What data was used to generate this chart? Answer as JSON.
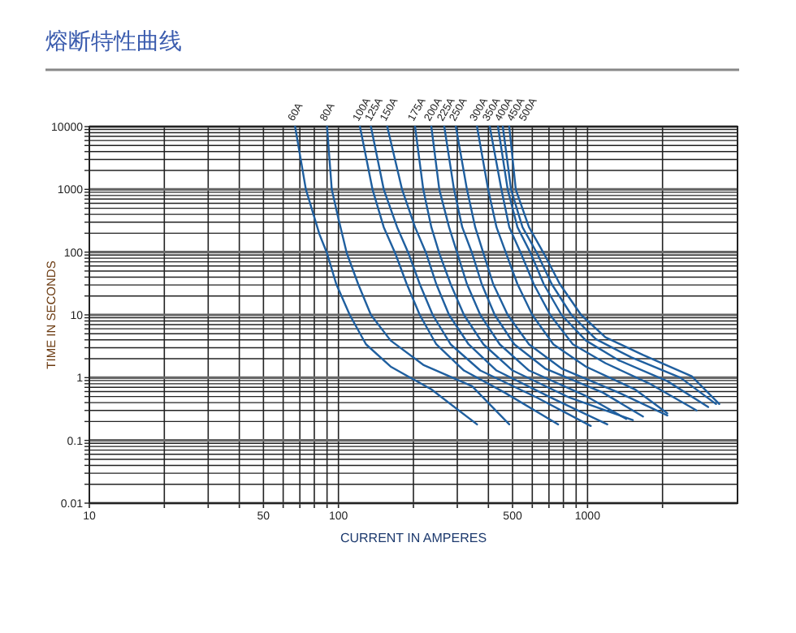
{
  "chart_data": {
    "type": "line",
    "title": "熔断特性曲线",
    "xlabel": "CURRENT IN AMPERES",
    "ylabel": "TIME IN SECONDS",
    "log": "xy",
    "grid": true,
    "legend": false,
    "marker": "none",
    "line_style": "solid",
    "xlim": [
      10,
      4000
    ],
    "ylim": [
      0.01,
      10000
    ],
    "xticks": [
      10,
      {
        "value": 20,
        "label": null
      },
      {
        "value": 30,
        "label": null
      },
      {
        "value": 40,
        "label": null
      },
      50,
      {
        "value": 60,
        "label": null
      },
      {
        "value": 70,
        "label": null
      },
      {
        "value": 80,
        "label": null
      },
      {
        "value": 90,
        "label": null
      },
      100,
      {
        "value": 200,
        "label": null
      },
      {
        "value": 300,
        "label": null
      },
      {
        "value": 400,
        "label": null
      },
      500,
      {
        "value": 600,
        "label": null
      },
      {
        "value": 700,
        "label": null
      },
      {
        "value": 800,
        "label": null
      },
      {
        "value": 900,
        "label": null
      },
      1000,
      {
        "value": 2000,
        "label": null
      }
    ],
    "yticks": [
      0.01,
      {
        "value": 0.02,
        "label": null
      },
      {
        "value": 0.03,
        "label": null
      },
      {
        "value": 0.04,
        "label": null
      },
      {
        "value": 0.05,
        "label": null
      },
      {
        "value": 0.06,
        "label": null
      },
      {
        "value": 0.07,
        "label": null
      },
      {
        "value": 0.08,
        "label": null
      },
      {
        "value": 0.09,
        "label": null
      },
      0.1,
      {
        "value": 0.2,
        "label": null
      },
      {
        "value": 0.3,
        "label": null
      },
      {
        "value": 0.4,
        "label": null
      },
      {
        "value": 0.5,
        "label": null
      },
      {
        "value": 0.6,
        "label": null
      },
      {
        "value": 0.7,
        "label": null
      },
      {
        "value": 0.8,
        "label": null
      },
      {
        "value": 0.9,
        "label": null
      },
      1,
      {
        "value": 2,
        "label": null
      },
      {
        "value": 3,
        "label": null
      },
      {
        "value": 4,
        "label": null
      },
      {
        "value": 5,
        "label": null
      },
      {
        "value": 6,
        "label": null
      },
      {
        "value": 7,
        "label": null
      },
      {
        "value": 8,
        "label": null
      },
      {
        "value": 9,
        "label": null
      },
      10,
      {
        "value": 20,
        "label": null
      },
      {
        "value": 30,
        "label": null
      },
      {
        "value": 40,
        "label": null
      },
      {
        "value": 50,
        "label": null
      },
      {
        "value": 60,
        "label": null
      },
      {
        "value": 70,
        "label": null
      },
      {
        "value": 80,
        "label": null
      },
      {
        "value": 90,
        "label": null
      },
      100,
      {
        "value": 200,
        "label": null
      },
      {
        "value": 300,
        "label": null
      },
      {
        "value": 400,
        "label": null
      },
      {
        "value": 500,
        "label": null
      },
      {
        "value": 600,
        "label": null
      },
      {
        "value": 700,
        "label": null
      },
      {
        "value": 800,
        "label": null
      },
      {
        "value": 900,
        "label": null
      },
      1000,
      {
        "value": 2000,
        "label": null
      },
      {
        "value": 3000,
        "label": null
      },
      {
        "value": 4000,
        "label": null
      },
      {
        "value": 5000,
        "label": null
      },
      {
        "value": 6000,
        "label": null
      },
      {
        "value": 7000,
        "label": null
      },
      {
        "value": 8000,
        "label": null
      },
      {
        "value": 9000,
        "label": null
      },
      10000
    ],
    "series": [
      {
        "name": "60A",
        "color": "#1f5f9f",
        "x": [
          67,
          74,
          84,
          90,
          98,
          111,
          129,
          162,
          236,
          360
        ],
        "values": [
          10000,
          1000,
          190,
          96,
          31,
          10,
          3.4,
          1.5,
          0.65,
          0.18
        ]
      },
      {
        "name": "80A",
        "color": "#1f5f9f",
        "x": [
          90,
          94,
          100,
          108,
          120,
          135,
          162,
          219,
          344,
          485
        ],
        "values": [
          10000,
          1000,
          340,
          96,
          31,
          10,
          3.9,
          1.6,
          0.73,
          0.18
        ]
      },
      {
        "name": "100A",
        "color": "#1f5f9f",
        "x": [
          122,
          137,
          152,
          169,
          188,
          212,
          247,
          319,
          464,
          762
        ],
        "values": [
          10000,
          1000,
          250,
          96,
          31,
          10,
          3.4,
          1.3,
          0.58,
          0.18
        ]
      },
      {
        "name": "125A",
        "color": "#1f5f9f",
        "x": [
          135,
          152,
          172,
          191,
          212,
          239,
          282,
          371,
          627,
          1030
        ],
        "values": [
          10000,
          1000,
          250,
          96,
          31,
          10,
          3.4,
          1.3,
          0.48,
          0.17
        ]
      },
      {
        "name": "150A",
        "color": "#1f5f9f",
        "x": [
          157,
          180,
          203,
          225,
          247,
          278,
          333,
          431,
          729,
          1200
        ],
        "values": [
          10000,
          1000,
          250,
          96,
          31,
          10,
          3.4,
          1.3,
          0.46,
          0.18
        ]
      },
      {
        "name": "175A",
        "color": "#1f5f9f",
        "x": [
          203,
          219,
          236,
          254,
          282,
          319,
          382,
          500,
          847,
          1520
        ],
        "values": [
          10000,
          1000,
          250,
          96,
          31,
          10,
          3.4,
          1.3,
          0.48,
          0.21
        ]
      },
      {
        "name": "200A",
        "color": "#1f5f9f",
        "x": [
          236,
          254,
          278,
          300,
          328,
          371,
          444,
          582,
          985,
          1430
        ],
        "values": [
          10000,
          1000,
          250,
          96,
          31,
          10,
          3.4,
          1.3,
          0.51,
          0.22
        ]
      },
      {
        "name": "225A",
        "color": "#1f5f9f",
        "x": [
          266,
          291,
          314,
          344,
          376,
          424,
          508,
          676,
          1150,
          1670
        ],
        "values": [
          10000,
          1000,
          250,
          96,
          31,
          10,
          3.4,
          1.4,
          0.58,
          0.24
        ]
      },
      {
        "name": "250A",
        "color": "#1f5f9f",
        "x": [
          296,
          328,
          354,
          382,
          418,
          478,
          582,
          786,
          1330,
          2090
        ],
        "values": [
          10000,
          1000,
          250,
          96,
          31,
          10,
          3.4,
          1.4,
          0.58,
          0.25
        ]
      },
      {
        "name": "300A",
        "color": "#1f5f9f",
        "x": [
          360,
          399,
          431,
          471,
          523,
          600,
          729,
          985,
          1550,
          2090
        ],
        "values": [
          10000,
          1000,
          250,
          96,
          31,
          10,
          3.4,
          1.5,
          0.65,
          0.27
        ]
      },
      {
        "name": "350A",
        "color": "#1f5f9f",
        "x": [
          405,
          451,
          485,
          540,
          608,
          708,
          873,
          1180,
          1800,
          2740
        ],
        "values": [
          10000,
          1000,
          250,
          96,
          31,
          10,
          3.4,
          1.7,
          0.78,
          0.3
        ]
      },
      {
        "name": "400A",
        "color": "#1f5f9f",
        "x": [
          437,
          478,
          523,
          591,
          667,
          786,
          985,
          1330,
          2090,
          3050
        ],
        "values": [
          10000,
          1000,
          250,
          96,
          31,
          10,
          3.9,
          1.9,
          0.88,
          0.34
        ]
      },
      {
        "name": "450A",
        "color": "#1f5f9f",
        "x": [
          457,
          493,
          548,
          627,
          718,
          861,
          1080,
          1500,
          2360,
          3280
        ],
        "values": [
          10000,
          1000,
          250,
          96,
          31,
          10,
          4.1,
          2.1,
          1.0,
          0.38
        ]
      },
      {
        "name": "500A",
        "color": "#1f5f9f",
        "x": [
          485,
          515,
          582,
          667,
          774,
          942,
          1180,
          1670,
          2620,
          3380
        ],
        "values": [
          10000,
          1000,
          250,
          96,
          31,
          10,
          4.4,
          2.3,
          1.05,
          0.38
        ]
      }
    ]
  }
}
